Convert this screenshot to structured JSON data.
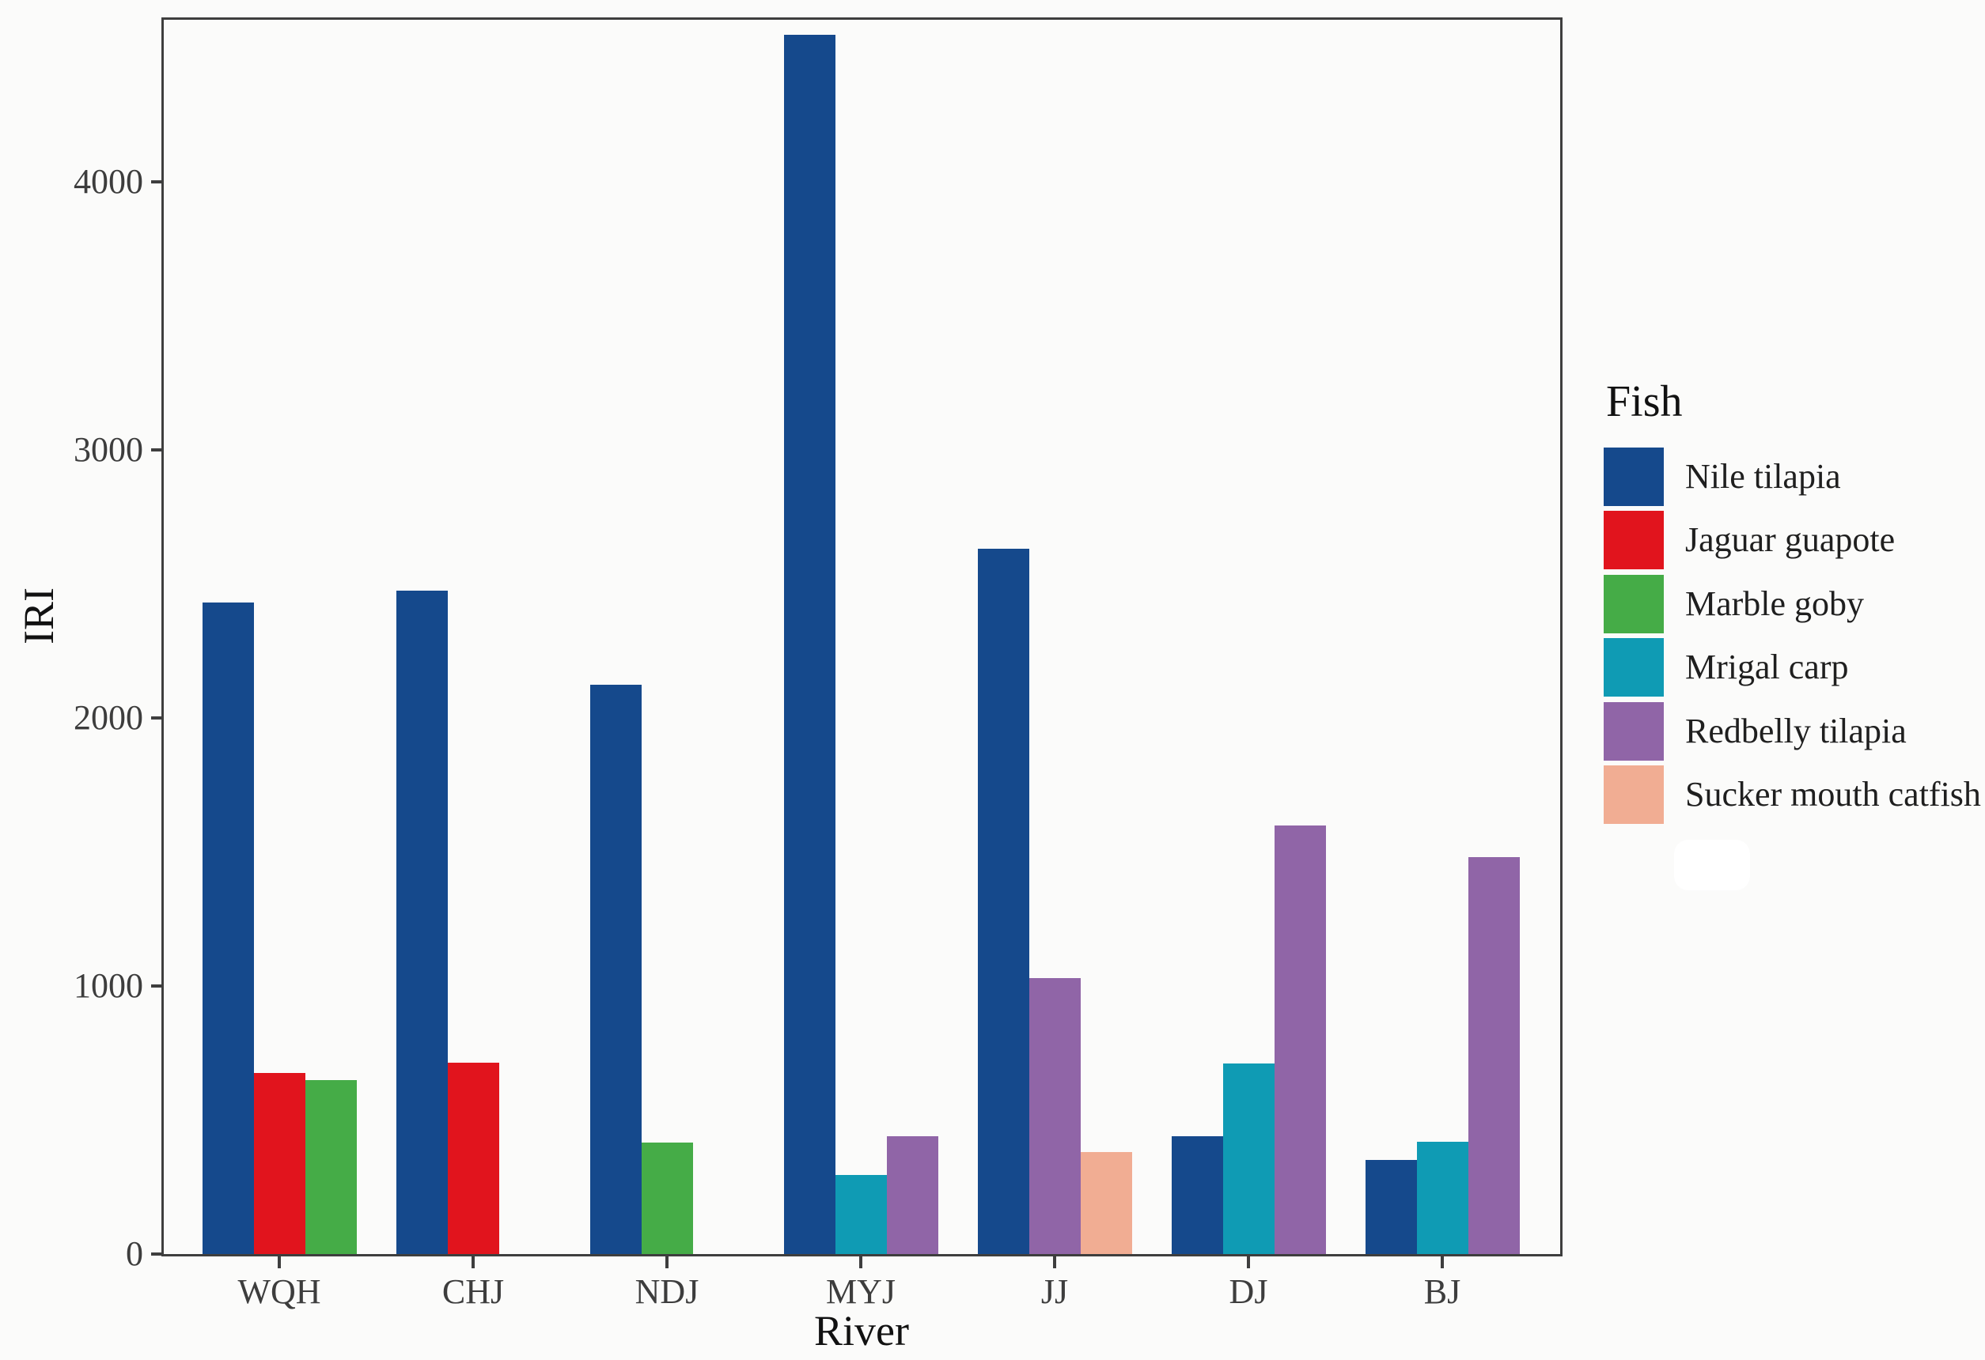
{
  "figure": {
    "background": "#fbfbfa",
    "panel_border_color": "#3e3e3e",
    "tick_text_color": "#3d3d3d",
    "title_text_color": "#111111"
  },
  "chart_data": {
    "type": "bar",
    "title": "",
    "xlabel": "River",
    "ylabel": "IRI",
    "legend_title": "Fish",
    "legend_position": "right",
    "grid": false,
    "categories": [
      "WQH",
      "CHJ",
      "NDJ",
      "MYJ",
      "JJ",
      "DJ",
      "BJ"
    ],
    "y_ticks": [
      0,
      1000,
      2000,
      3000,
      4000
    ],
    "ylim": [
      0,
      4605
    ],
    "series": [
      {
        "name": "Nile tilapia",
        "color": "#15498c",
        "values": [
          2430,
          2475,
          2125,
          4550,
          2630,
          440,
          350
        ]
      },
      {
        "name": "Jaguar guapote",
        "color": "#e1141d",
        "values": [
          675,
          715,
          null,
          null,
          null,
          null,
          null
        ]
      },
      {
        "name": "Marble goby",
        "color": "#45ac47",
        "values": [
          650,
          null,
          415,
          null,
          null,
          null,
          null
        ]
      },
      {
        "name": "Mrigal carp",
        "color": "#0f9bb4",
        "values": [
          null,
          null,
          null,
          295,
          null,
          710,
          420
        ]
      },
      {
        "name": "Redbelly tilapia",
        "color": "#9065a7",
        "values": [
          null,
          null,
          null,
          440,
          1030,
          1600,
          1480
        ]
      },
      {
        "name": "Sucker mouth catfish",
        "color": "#f1ad93",
        "values": [
          null,
          null,
          null,
          null,
          380,
          null,
          null
        ]
      }
    ]
  }
}
